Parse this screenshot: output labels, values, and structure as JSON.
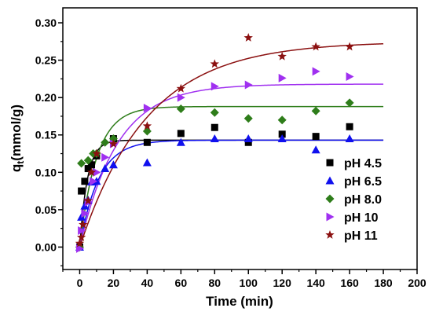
{
  "chart_data": {
    "type": "scatter",
    "title": "",
    "xlabel": "Time (min)",
    "ylabel_main": "q",
    "ylabel_sub": "t",
    "ylabel_rest": "(mmol/g)",
    "xlim": [
      -10,
      200
    ],
    "ylim": [
      -0.03,
      0.32
    ],
    "xticks": [
      "0",
      "20",
      "40",
      "60",
      "80",
      "100",
      "120",
      "140",
      "160",
      "180",
      "200"
    ],
    "xtick_values": [
      0,
      20,
      40,
      60,
      80,
      100,
      120,
      140,
      160,
      180,
      200
    ],
    "yticks": [
      "0.00",
      "0.05",
      "0.10",
      "0.15",
      "0.20",
      "0.25",
      "0.30"
    ],
    "ytick_values": [
      0,
      0.05,
      0.1,
      0.15,
      0.2,
      0.25,
      0.3
    ],
    "grid": false,
    "legend_position": "bottom-right",
    "series": [
      {
        "name": "pH 4.5",
        "marker": "square",
        "color": "#000000",
        "points": [
          [
            0,
            0.0
          ],
          [
            1,
            0.075
          ],
          [
            3,
            0.088
          ],
          [
            5,
            0.105
          ],
          [
            7,
            0.11
          ],
          [
            10,
            0.122
          ],
          [
            20,
            0.145
          ],
          [
            40,
            0.14
          ],
          [
            60,
            0.152
          ],
          [
            80,
            0.16
          ],
          [
            100,
            0.14
          ],
          [
            120,
            0.151
          ],
          [
            140,
            0.148
          ],
          [
            160,
            0.161
          ]
        ],
        "fit": {
          "qe": 0.143,
          "k": 0.22,
          "x_max": 180
        }
      },
      {
        "name": "pH 6.5",
        "marker": "triangle-up",
        "color": "#1010ee",
        "points": [
          [
            0,
            0.0
          ],
          [
            1,
            0.04
          ],
          [
            3,
            0.055
          ],
          [
            5,
            0.063
          ],
          [
            7,
            0.087
          ],
          [
            10,
            0.088
          ],
          [
            15,
            0.105
          ],
          [
            20,
            0.11
          ],
          [
            40,
            0.113
          ],
          [
            60,
            0.14
          ],
          [
            80,
            0.145
          ],
          [
            100,
            0.145
          ],
          [
            120,
            0.145
          ],
          [
            140,
            0.13
          ],
          [
            160,
            0.145
          ]
        ],
        "fit": {
          "qe": 0.143,
          "k": 0.09,
          "x_max": 180
        }
      },
      {
        "name": "pH 8.0",
        "marker": "diamond",
        "color": "#2e7d1a",
        "points": [
          [
            0,
            0.0
          ],
          [
            1,
            0.112
          ],
          [
            5,
            0.116
          ],
          [
            8,
            0.125
          ],
          [
            10,
            0.125
          ],
          [
            15,
            0.14
          ],
          [
            20,
            0.145
          ],
          [
            40,
            0.155
          ],
          [
            60,
            0.185
          ],
          [
            80,
            0.18
          ],
          [
            100,
            0.172
          ],
          [
            120,
            0.17
          ],
          [
            140,
            0.182
          ],
          [
            160,
            0.193
          ]
        ],
        "fit": {
          "qe": 0.188,
          "k": 0.1,
          "x_max": 180
        }
      },
      {
        "name": "pH 10",
        "marker": "triangle-right",
        "color": "#a030f0",
        "points": [
          [
            0,
            -0.002
          ],
          [
            1,
            0.022
          ],
          [
            3,
            0.045
          ],
          [
            5,
            0.06
          ],
          [
            8,
            0.088
          ],
          [
            10,
            0.1
          ],
          [
            15,
            0.12
          ],
          [
            20,
            0.138
          ],
          [
            40,
            0.186
          ],
          [
            60,
            0.2
          ],
          [
            80,
            0.215
          ],
          [
            100,
            0.217
          ],
          [
            120,
            0.226
          ],
          [
            140,
            0.235
          ],
          [
            160,
            0.228
          ]
        ],
        "fit": {
          "qe": 0.218,
          "k": 0.045,
          "x_max": 180
        }
      },
      {
        "name": "pH 11",
        "marker": "star",
        "color": "#8b1010",
        "points": [
          [
            0,
            0.005
          ],
          [
            1,
            0.013
          ],
          [
            2,
            0.03
          ],
          [
            5,
            0.062
          ],
          [
            7,
            0.1
          ],
          [
            10,
            0.125
          ],
          [
            20,
            0.138
          ],
          [
            40,
            0.162
          ],
          [
            60,
            0.212
          ],
          [
            80,
            0.245
          ],
          [
            100,
            0.28
          ],
          [
            120,
            0.255
          ],
          [
            140,
            0.268
          ],
          [
            160,
            0.268
          ]
        ],
        "fit": {
          "qe": 0.275,
          "k": 0.025,
          "x_max": 180
        }
      }
    ]
  }
}
